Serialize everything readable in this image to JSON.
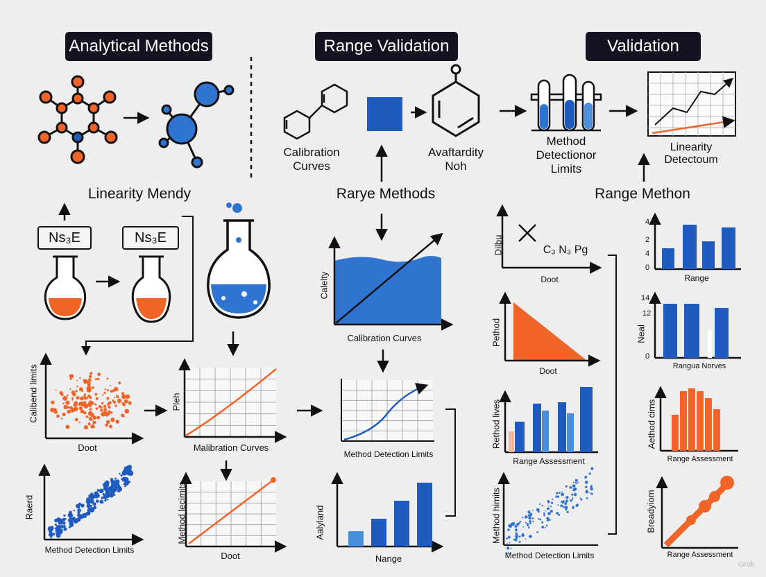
{
  "headers": {
    "analytical_methods": "Analytical Methods",
    "range_validation": "Range Validation",
    "validation": "Validation"
  },
  "labels": {
    "calibration_curves_top": [
      "Calibration",
      "Curves"
    ],
    "availability": [
      "Avaftardity",
      "Noh"
    ],
    "method_detection": [
      "Method",
      "Detectionor",
      "Limits"
    ],
    "linearity_detection": [
      "Linearity",
      "Detectoum"
    ],
    "linearity_mendy": "Linearity Mendy",
    "rarye_methods": "Rarye Methods",
    "range_methon": "Range Methon",
    "box1": "Ns₃E",
    "box2": "Ns₃E",
    "formula": "C₃  N₃ Pg"
  },
  "charts": {
    "calibration_main": {
      "ylabel": "Calelty",
      "xlabel": "Calibration Curves"
    },
    "scatter_orange": {
      "ylabel": "Calibend limits",
      "xlabel": "Doot"
    },
    "pleh": {
      "ylabel": "Pleh",
      "xlabel": "Malibration Curves"
    },
    "mdl_line": {
      "xlabel": "Method Detection Limits"
    },
    "scatter_blue": {
      "ylabel": "Raerd",
      "xlabel": "Method Detection Limits"
    },
    "method_lecimits": {
      "ylabel": "Method lecimits",
      "xlabel": "Doot"
    },
    "analyland": {
      "ylabel": "Aalyland",
      "xlabel": "Nange"
    },
    "dilbu": {
      "ylabel": "Dilbu",
      "xlabel": "Doot"
    },
    "triangle": {
      "ylabel": "Pethod",
      "xlabel": "Doot"
    },
    "range_assessment_bars": {
      "ylabel": "Rethod lives",
      "xlabel": "Range Assessment"
    },
    "scatter_right": {
      "ylabel": "Method himits",
      "xlabel": "Method Detection Limits"
    },
    "range_bars": {
      "xlabel": "Range",
      "ticks": [
        "4",
        "2",
        "4",
        "0"
      ]
    },
    "range_nerves": {
      "ylabel": "Neal",
      "xlabel": "Rangua Norves",
      "ticks": [
        "14",
        "12",
        "0"
      ]
    },
    "method_cims": {
      "ylabel": "Aethod cims",
      "xlabel": "Range Assessment"
    },
    "breadyiom": {
      "ylabel": "Breadyiom",
      "xlabel": "Range Assessment"
    }
  },
  "watermark": "Grok",
  "colors": {
    "orange": "#f06428",
    "blue": "#1f5bbf",
    "light_blue": "#4a8fdc",
    "dark": "#141420"
  }
}
